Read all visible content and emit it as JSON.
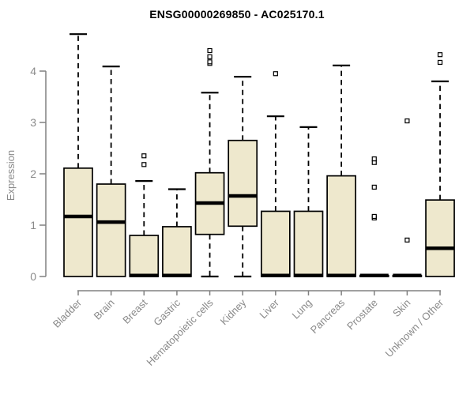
{
  "colors": {
    "background": "#ffffff",
    "box_fill": "#EEE8CD",
    "box_border": "#000000",
    "median": "#000000",
    "whisker": "#000000",
    "axis": "#808080",
    "tick_label": "#8a8a8a",
    "title": "#000000"
  },
  "chart_data": {
    "type": "boxplot",
    "title": "ENSG00000269850 - AC025170.1",
    "ylabel": "Expression",
    "xlabel": "",
    "ylim": [
      0,
      4.8
    ],
    "yticks": [
      0,
      1,
      2,
      3,
      4
    ],
    "grid": false,
    "legend": "none",
    "categories": [
      "Bladder",
      "Brain",
      "Breast",
      "Gastric",
      "Hematopoietic cells",
      "Kidney",
      "Liver",
      "Lung",
      "Pancreas",
      "Prostate",
      "Skin",
      "Unknown / Other"
    ],
    "series": [
      {
        "name": "Bladder",
        "low": 0,
        "q1": 0,
        "median": 1.17,
        "q3": 2.11,
        "high": 4.72,
        "outliers": []
      },
      {
        "name": "Brain",
        "low": 0,
        "q1": 0,
        "median": 1.06,
        "q3": 1.8,
        "high": 4.09,
        "outliers": []
      },
      {
        "name": "Breast",
        "low": 0,
        "q1": 0,
        "median": 0.02,
        "q3": 0.8,
        "high": 1.86,
        "outliers": [
          2.18,
          2.35
        ]
      },
      {
        "name": "Gastric",
        "low": 0,
        "q1": 0,
        "median": 0.02,
        "q3": 0.97,
        "high": 1.7,
        "outliers": []
      },
      {
        "name": "Hematopoietic cells",
        "low": 0,
        "q1": 0.82,
        "median": 1.43,
        "q3": 2.02,
        "high": 3.58,
        "outliers": [
          4.15,
          4.18,
          4.28,
          4.4
        ]
      },
      {
        "name": "Kidney",
        "low": 0,
        "q1": 0.98,
        "median": 1.57,
        "q3": 2.65,
        "high": 3.89,
        "outliers": []
      },
      {
        "name": "Liver",
        "low": 0,
        "q1": 0,
        "median": 0.02,
        "q3": 1.27,
        "high": 3.12,
        "outliers": [
          3.95
        ]
      },
      {
        "name": "Lung",
        "low": 0,
        "q1": 0,
        "median": 0.02,
        "q3": 1.27,
        "high": 2.91,
        "outliers": []
      },
      {
        "name": "Pancreas",
        "low": 0,
        "q1": 0,
        "median": 0.02,
        "q3": 1.96,
        "high": 4.11,
        "outliers": []
      },
      {
        "name": "Prostate",
        "low": 0,
        "q1": 0,
        "median": 0.02,
        "q3": 0.02,
        "high": 0.02,
        "outliers": [
          1.14,
          1.17,
          1.74,
          2.22,
          2.29
        ]
      },
      {
        "name": "Skin",
        "low": 0,
        "q1": 0,
        "median": 0.02,
        "q3": 0.02,
        "high": 0.02,
        "outliers": [
          0.71,
          3.03
        ]
      },
      {
        "name": "Unknown / Other",
        "low": 0,
        "q1": 0,
        "median": 0.55,
        "q3": 1.49,
        "high": 3.8,
        "outliers": [
          4.17,
          4.32
        ]
      }
    ]
  }
}
